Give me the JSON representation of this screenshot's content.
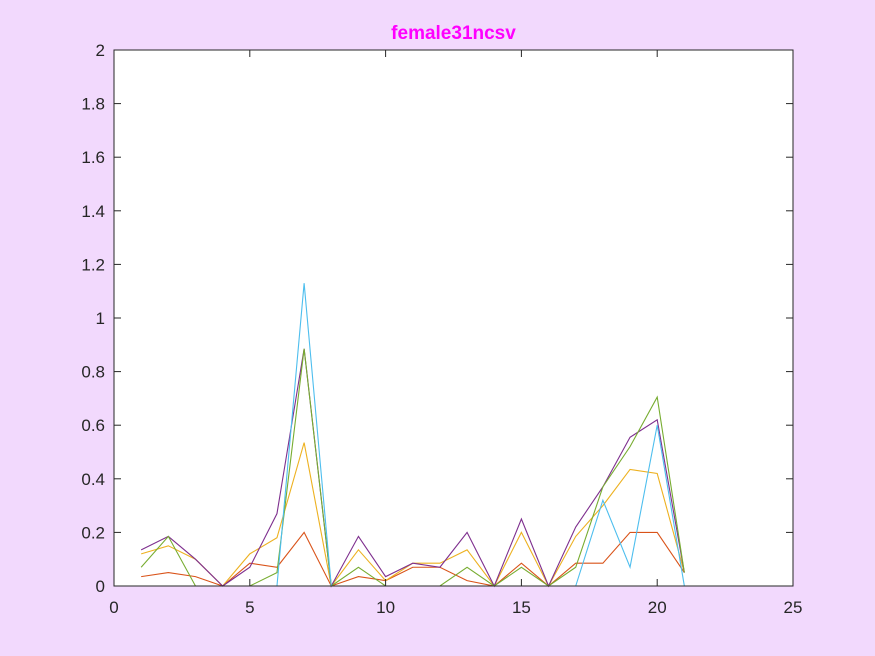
{
  "chart_data": {
    "type": "line",
    "title": "female31ncsv",
    "xlabel": "",
    "ylabel": "",
    "xlim": [
      0,
      25
    ],
    "ylim": [
      0,
      2
    ],
    "xticks": [
      "0",
      "5",
      "10",
      "15",
      "20",
      "25"
    ],
    "yticks": [
      "0",
      "0.2",
      "0.4",
      "0.6",
      "0.8",
      "1",
      "1.2",
      "1.4",
      "1.6",
      "1.8",
      "2"
    ],
    "grid": false,
    "legend": "none",
    "x": [
      1,
      2,
      3,
      4,
      5,
      6,
      7,
      8,
      9,
      10,
      11,
      12,
      13,
      14,
      15,
      16,
      17,
      18,
      19,
      20,
      21
    ],
    "series": [
      {
        "color": "#d95319",
        "values": [
          0.035,
          0.05,
          0.035,
          0,
          0.085,
          0.07,
          0.2,
          0,
          0.035,
          0.02,
          0.07,
          0.07,
          0.02,
          0,
          0.085,
          0,
          0.085,
          0.085,
          0.2,
          0.2,
          0.05
        ]
      },
      {
        "color": "#edb120",
        "values": [
          0.12,
          0.15,
          0.1,
          0,
          0.12,
          0.18,
          0.535,
          0,
          0.135,
          0.02,
          0.085,
          0.085,
          0.135,
          0,
          0.2,
          0,
          0.185,
          0.3,
          0.435,
          0.42,
          0.05
        ]
      },
      {
        "color": "#7e2f8e",
        "values": [
          0.135,
          0.185,
          0.1,
          0,
          0.07,
          0.27,
          0.885,
          0,
          0.185,
          0.035,
          0.085,
          0.07,
          0.2,
          0,
          0.25,
          0,
          0.22,
          0.37,
          0.555,
          0.62,
          0.05
        ]
      },
      {
        "color": "#77ac30",
        "values": [
          0.07,
          0.185,
          0,
          0,
          0,
          0.05,
          0.885,
          0,
          0.07,
          0,
          0,
          0,
          0.07,
          0,
          0.07,
          0,
          0.07,
          0.37,
          0.52,
          0.705,
          0.05
        ]
      },
      {
        "color": "#4dbeee",
        "values": [
          0,
          0,
          0,
          0,
          0,
          0,
          1.13,
          0,
          0,
          0,
          0,
          0,
          0,
          0,
          0,
          0,
          0,
          0.32,
          0.07,
          0.6,
          0
        ]
      }
    ],
    "colors": {
      "background": "#f2d9fd",
      "plot_area": "#ffffff",
      "title": "#ff00ff",
      "axes": "#262626"
    }
  }
}
